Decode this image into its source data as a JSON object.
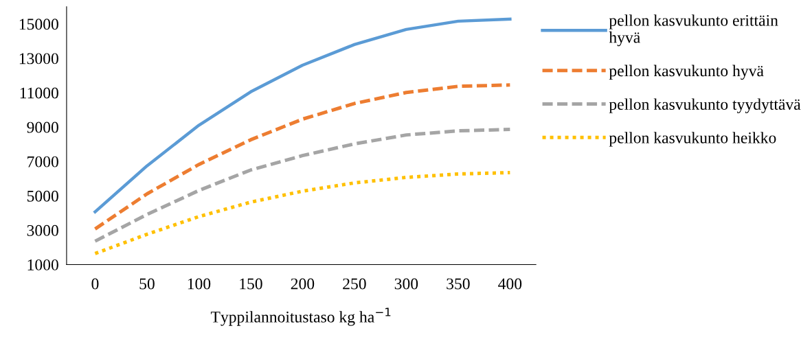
{
  "chart_data": {
    "type": "line",
    "xlabel": "Typpilannoitustaso kg ha$^{−1}$",
    "categories": [
      "0",
      "50",
      "100",
      "150",
      "200",
      "250",
      "300",
      "350",
      "400"
    ],
    "ylim": [
      1000,
      16000
    ],
    "yticks": [
      1000,
      3000,
      5000,
      7000,
      9000,
      11000,
      13000,
      15000
    ],
    "grid": false,
    "legend": "right",
    "marker": "none",
    "series": [
      {
        "name": "pellon kasvukunto erittäin\nhyvä",
        "color": "#5b9bd5",
        "line_style": "solid",
        "values": [
          4070,
          6740,
          9100,
          11050,
          12600,
          13800,
          14680,
          15160,
          15280
        ]
      },
      {
        "name": "pellon kasvukunto hyvä",
        "color": "#ed7d31",
        "line_style": "dashed",
        "values": [
          3070,
          5110,
          6820,
          8260,
          9460,
          10370,
          11010,
          11370,
          11450
        ]
      },
      {
        "name": "pellon kasvukunto tyydyttävä",
        "color": "#a5a5a5",
        "line_style": "dashed",
        "values": [
          2360,
          3910,
          5310,
          6500,
          7340,
          8020,
          8540,
          8780,
          8860
        ]
      },
      {
        "name": "pellon kasvukunto heikko",
        "color": "#ffc000",
        "line_style": "dotted",
        "values": [
          1640,
          2760,
          3790,
          4630,
          5270,
          5750,
          6070,
          6270,
          6350
        ]
      }
    ]
  }
}
